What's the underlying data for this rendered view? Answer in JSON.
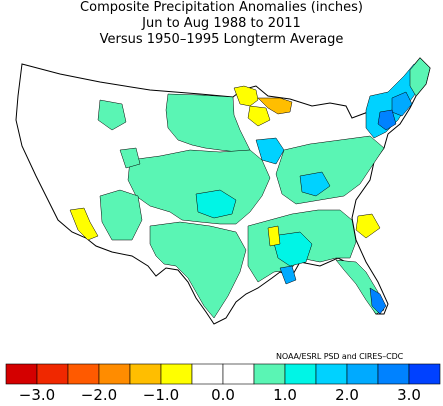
{
  "header": {
    "line1": "Composite Precipitation Anomalies (inches)",
    "line2": "Jun to Aug 1988 to 2011",
    "line3": "Versus 1950–1995 Longterm Average"
  },
  "credit": "NOAA/ESRL PSD and CIRES–CDC",
  "legend": {
    "colors": [
      "#d40000",
      "#f02800",
      "#ff5a00",
      "#ff8c00",
      "#ffbe00",
      "#ffff00",
      "#ffffff",
      "#ffffff",
      "#5af5b4",
      "#00f5e6",
      "#00d2ff",
      "#00aaff",
      "#0082ff",
      "#0041ff"
    ],
    "ticks": [
      "−3.0",
      "−2.0",
      "−1.0",
      "0.0",
      "1.0",
      "2.0",
      "3.0"
    ]
  },
  "map_colors": {
    "wet1": "#5af5b4",
    "wet2": "#00f5e6",
    "wet3": "#00d2ff",
    "wet4": "#00aaff",
    "wet5": "#0082ff",
    "wet6": "#0041ff",
    "dry1": "#ffff00",
    "dry2": "#ffbe00",
    "neutral": "#ffffff"
  }
}
